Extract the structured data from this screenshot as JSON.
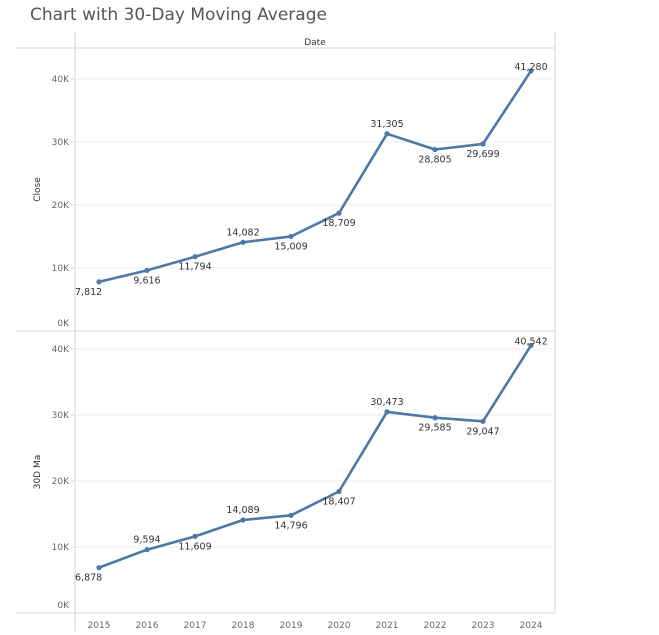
{
  "title": "Chart with 30-Day Moving Average",
  "chart_data": {
    "type": "line",
    "column_header": "Date",
    "categories": [
      "2015",
      "2016",
      "2017",
      "2018",
      "2019",
      "2020",
      "2021",
      "2022",
      "2023",
      "2024"
    ],
    "ylim": [
      0,
      42000
    ],
    "y_ticks": [
      "0K",
      "10K",
      "20K",
      "30K",
      "40K"
    ],
    "grid": true,
    "color": "#4e79a7",
    "panels": [
      {
        "ylabel": "Close",
        "values": [
          7812,
          9616,
          11794,
          14082,
          15009,
          18709,
          31305,
          28805,
          29699,
          41280
        ],
        "labels": [
          "7,812",
          "9,616",
          "11,794",
          "14,082",
          "15,009",
          "18,709",
          "31,305",
          "28,805",
          "29,699",
          "41,280"
        ],
        "label_pos": [
          "below",
          "below",
          "below",
          "above",
          "below",
          "below",
          "above",
          "below",
          "below",
          "above"
        ]
      },
      {
        "ylabel": "30D Ma",
        "values": [
          6878,
          9594,
          11609,
          14089,
          14796,
          18407,
          30473,
          29585,
          29047,
          40542
        ],
        "labels": [
          "6,878",
          "9,594",
          "11,609",
          "14,089",
          "14,796",
          "18,407",
          "30,473",
          "29,585",
          "29,047",
          "40,542"
        ],
        "label_pos": [
          "below",
          "above",
          "below",
          "above",
          "below",
          "below",
          "above",
          "below",
          "below",
          "above"
        ]
      }
    ]
  }
}
